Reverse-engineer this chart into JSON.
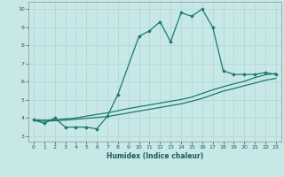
{
  "xlabel": "Humidex (Indice chaleur)",
  "xlim": [
    -0.5,
    23.5
  ],
  "ylim": [
    2.7,
    10.4
  ],
  "xticks": [
    0,
    1,
    2,
    3,
    4,
    5,
    6,
    7,
    8,
    9,
    10,
    11,
    12,
    13,
    14,
    15,
    16,
    17,
    18,
    19,
    20,
    21,
    22,
    23
  ],
  "yticks": [
    3,
    4,
    5,
    6,
    7,
    8,
    9,
    10
  ],
  "background_color": "#c8e8e8",
  "grid_color": "#b0d4d4",
  "line_color": "#1a7a6a",
  "line1_x": [
    0,
    1,
    2,
    3,
    4,
    5,
    6,
    7,
    8,
    10,
    11,
    12,
    13,
    14,
    15,
    16,
    17,
    18,
    19,
    20,
    21,
    22,
    23
  ],
  "line1_y": [
    3.9,
    3.7,
    4.0,
    3.5,
    3.5,
    3.5,
    3.4,
    4.1,
    5.3,
    8.5,
    8.8,
    9.3,
    8.2,
    9.8,
    9.6,
    10.0,
    9.0,
    6.6,
    6.4,
    6.4,
    6.4,
    6.5,
    6.4
  ],
  "line2_x": [
    0,
    1,
    2,
    3,
    4,
    5,
    6,
    7,
    8,
    9,
    10,
    11,
    12,
    13,
    14,
    15,
    16,
    17,
    18,
    19,
    20,
    21,
    22,
    23
  ],
  "line2_y": [
    3.9,
    3.88,
    3.9,
    3.95,
    4.0,
    4.1,
    4.2,
    4.28,
    4.4,
    4.52,
    4.62,
    4.72,
    4.82,
    4.92,
    5.02,
    5.15,
    5.35,
    5.55,
    5.72,
    5.88,
    6.02,
    6.22,
    6.38,
    6.45
  ],
  "line3_x": [
    0,
    1,
    2,
    3,
    4,
    5,
    6,
    7,
    8,
    9,
    10,
    11,
    12,
    13,
    14,
    15,
    16,
    17,
    18,
    19,
    20,
    21,
    22,
    23
  ],
  "line3_y": [
    3.85,
    3.82,
    3.85,
    3.88,
    3.93,
    3.98,
    4.03,
    4.08,
    4.18,
    4.28,
    4.38,
    4.48,
    4.58,
    4.68,
    4.78,
    4.92,
    5.08,
    5.28,
    5.48,
    5.62,
    5.78,
    5.92,
    6.08,
    6.18
  ]
}
